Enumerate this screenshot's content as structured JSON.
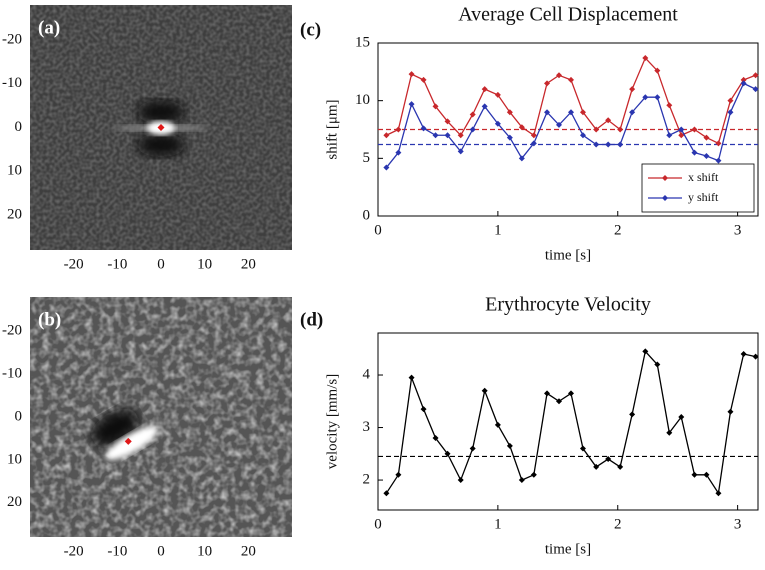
{
  "chart_data": [
    {
      "type": "image",
      "label": "(a)",
      "xlim": [
        -30,
        30
      ],
      "ylim": [
        -28,
        28
      ],
      "y_inverted": true,
      "xticks": [
        -20,
        -10,
        0,
        10,
        20
      ],
      "yticks": [
        -20,
        -10,
        0,
        10,
        20
      ],
      "marker": {
        "x": 0,
        "y": 0,
        "color": "#e01818"
      }
    },
    {
      "type": "image",
      "label": "(b)",
      "xlim": [
        -30,
        30
      ],
      "ylim": [
        -28,
        28
      ],
      "y_inverted": true,
      "xticks": [
        -20,
        -10,
        0,
        10,
        20
      ],
      "yticks": [
        -20,
        -10,
        0,
        10,
        20
      ],
      "marker": {
        "x": -7.5,
        "y": 5.7,
        "color": "#e01818"
      }
    },
    {
      "type": "line",
      "label": "(c)",
      "title": "Average Cell Displacement",
      "xlabel": "time [s]",
      "ylabel": "shift [μm]",
      "xlim": [
        0,
        3.17
      ],
      "ylim": [
        0,
        15
      ],
      "xticks": [
        0,
        1,
        2,
        3
      ],
      "yticks": [
        0,
        5,
        10,
        15
      ],
      "legend": "lower right",
      "x": [
        0.07,
        0.17,
        0.28,
        0.38,
        0.48,
        0.58,
        0.69,
        0.79,
        0.89,
        1.0,
        1.1,
        1.2,
        1.3,
        1.41,
        1.51,
        1.61,
        1.71,
        1.82,
        1.92,
        2.02,
        2.12,
        2.23,
        2.33,
        2.43,
        2.53,
        2.64,
        2.74,
        2.84,
        2.94,
        3.05,
        3.15
      ],
      "series": [
        {
          "name": "x shift",
          "color": "#c8282c",
          "values": [
            7.0,
            7.5,
            12.3,
            11.8,
            9.5,
            8.2,
            7.0,
            8.8,
            11.0,
            10.5,
            9.0,
            7.7,
            7.0,
            11.5,
            12.2,
            11.8,
            9.0,
            7.5,
            8.3,
            7.5,
            11.0,
            13.7,
            12.6,
            9.6,
            7.0,
            7.5,
            6.8,
            6.3,
            10.0,
            11.8,
            12.2
          ]
        },
        {
          "name": "y shift",
          "color": "#2a36b0",
          "values": [
            4.2,
            5.5,
            9.7,
            7.6,
            7.0,
            7.0,
            5.6,
            7.5,
            9.5,
            8.0,
            6.8,
            5.0,
            6.3,
            9.0,
            7.9,
            9.0,
            7.0,
            6.2,
            6.2,
            6.2,
            9.0,
            10.3,
            10.3,
            7.0,
            7.5,
            5.5,
            5.2,
            4.8,
            9.0,
            11.5,
            11.0
          ]
        }
      ],
      "mean_lines": [
        {
          "value": 7.5,
          "color": "#c8282c"
        },
        {
          "value": 6.2,
          "color": "#2a36b0"
        }
      ]
    },
    {
      "type": "line",
      "label": "(d)",
      "title": "Erythrocyte Velocity",
      "xlabel": "time [s]",
      "ylabel": "velocity [mm/s]",
      "xlim": [
        0,
        3.17
      ],
      "ylim": [
        1.43,
        4.8
      ],
      "xticks": [
        0,
        1,
        2,
        3
      ],
      "yticks": [
        2,
        3,
        4
      ],
      "x": [
        0.07,
        0.17,
        0.28,
        0.38,
        0.48,
        0.58,
        0.69,
        0.79,
        0.89,
        1.0,
        1.1,
        1.2,
        1.3,
        1.41,
        1.51,
        1.61,
        1.71,
        1.82,
        1.92,
        2.02,
        2.12,
        2.23,
        2.33,
        2.43,
        2.53,
        2.64,
        2.74,
        2.84,
        2.94,
        3.05,
        3.15
      ],
      "series": [
        {
          "color": "#000000",
          "values": [
            1.75,
            2.1,
            3.95,
            3.35,
            2.8,
            2.5,
            2.0,
            2.6,
            3.7,
            3.05,
            2.65,
            2.0,
            2.1,
            3.65,
            3.5,
            3.65,
            2.6,
            2.25,
            2.4,
            2.25,
            3.25,
            4.45,
            4.2,
            2.9,
            3.2,
            2.1,
            2.1,
            1.75,
            3.3,
            4.4,
            4.35
          ]
        }
      ],
      "mean_lines": [
        {
          "value": 2.45,
          "color": "#000000"
        }
      ]
    }
  ]
}
